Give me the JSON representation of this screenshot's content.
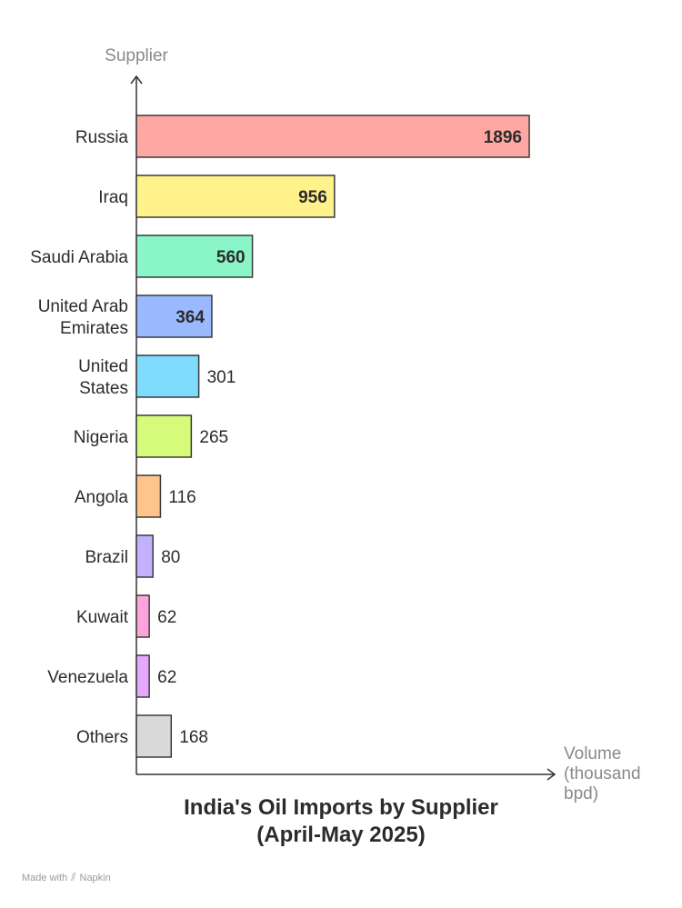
{
  "chart_data": {
    "type": "bar",
    "orientation": "horizontal",
    "title_line1": "India's Oil Imports by Supplier",
    "title_line2": "(April-May 2025)",
    "ylabel": "Supplier",
    "xlabel_lines": [
      "Volume",
      "(thousand",
      "bpd)"
    ],
    "categories": [
      [
        "Russia"
      ],
      [
        "Iraq"
      ],
      [
        "Saudi Arabia"
      ],
      [
        "United Arab",
        "Emirates"
      ],
      [
        "United",
        "States"
      ],
      [
        "Nigeria"
      ],
      [
        "Angola"
      ],
      [
        "Brazil"
      ],
      [
        "Kuwait"
      ],
      [
        "Venezuela"
      ],
      [
        "Others"
      ]
    ],
    "values": [
      1896,
      956,
      560,
      364,
      301,
      265,
      116,
      80,
      62,
      62,
      168
    ],
    "colors": [
      "#ffa8a3",
      "#fff28a",
      "#8af5c6",
      "#9ab9ff",
      "#7fdcff",
      "#d6fa7a",
      "#ffc48c",
      "#c3b0ff",
      "#ffa3dc",
      "#e6a8ff",
      "#d9d9d9"
    ],
    "xlim": [
      0,
      1896
    ],
    "grid": false,
    "legend": "none"
  },
  "footer": {
    "made_with": "Made with",
    "brand": "Napkin"
  }
}
